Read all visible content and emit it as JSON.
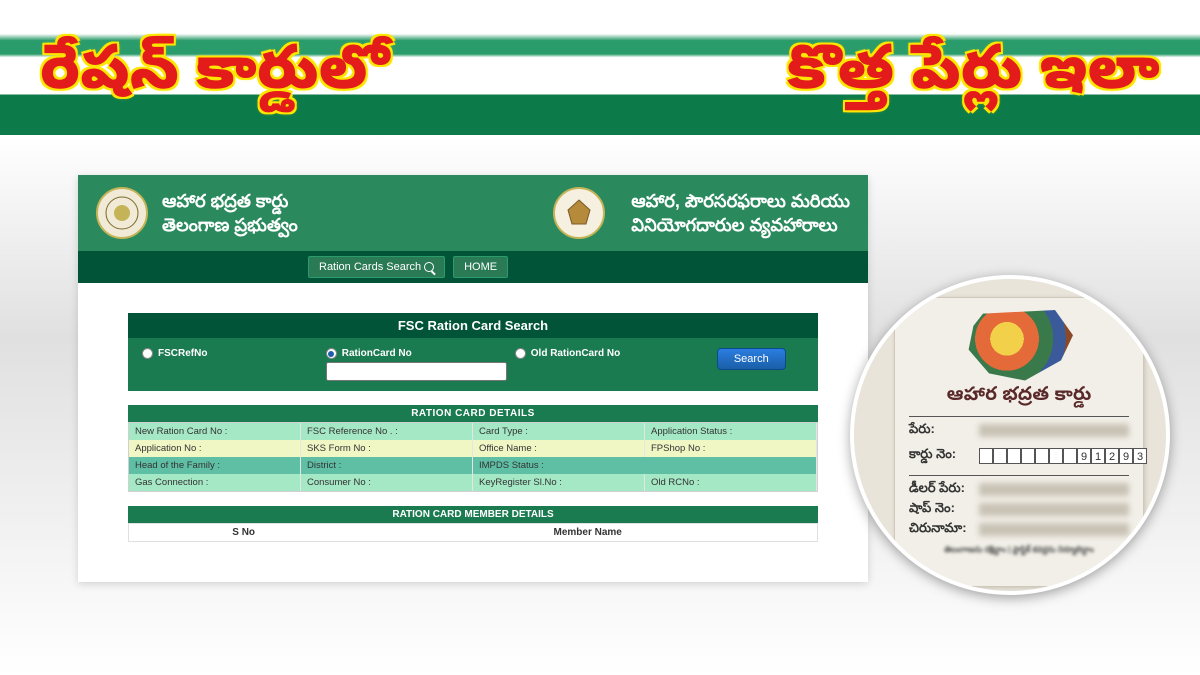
{
  "headline": {
    "left": "రేషన్ కార్డులో",
    "right": "కొత్త పేర్లు ఇలా"
  },
  "panel": {
    "header": {
      "left_line1": "ఆహార భద్రత కార్డు",
      "left_line2": "తెలంగాణ ప్రభుత్వం",
      "right_line1": "ఆహార, పౌరసరఫరాలు మరియు",
      "right_line2": "వినియోగదారుల వ్యవహారాలు"
    },
    "nav": {
      "search_label": "Ration Cards Search",
      "home_label": "HOME"
    },
    "search": {
      "title": "FSC Ration Card Search",
      "opt1": "FSCRefNo",
      "opt2": "RationCard No",
      "opt3": "Old RationCard No",
      "button": "Search"
    },
    "details": {
      "title": "RATION CARD DETAILS",
      "r1": {
        "a": "New Ration Card No :",
        "b": "FSC Reference No . :",
        "c": "Card Type :",
        "d": "Application Status :"
      },
      "r2": {
        "a": "Application No :",
        "b": "SKS Form No :",
        "c": "Office Name :",
        "d": "FPShop No :"
      },
      "r3": {
        "a": "Head of the Family :",
        "b": "District :",
        "c": "IMPDS Status :"
      },
      "r4": {
        "a": "Gas Connection :",
        "b": "Consumer No :",
        "c": "KeyRegister Sl.No :",
        "d": "Old RCNo :"
      }
    },
    "members": {
      "title": "RATION CARD MEMBER DETAILS",
      "col1": "S No",
      "col2": "Member Name"
    }
  },
  "card": {
    "title": "ఆహార భద్రత కార్డు",
    "name_label": "పేరు:",
    "cardno_label": "కార్డు నెం:",
    "dealer_label": "డీలర్ పేరు:",
    "shop_label": "షాప్ నెం:",
    "address_label": "చిరునామా:",
    "digits": [
      "",
      "",
      "",
      "",
      "",
      "",
      "",
      "9",
      "1",
      "2",
      "9",
      "3"
    ],
    "footer": "తెలంగాణను రక్షిద్దాం | ప్లాస్టిక్ కవర్లను నిర్మూలిద్దాం"
  }
}
